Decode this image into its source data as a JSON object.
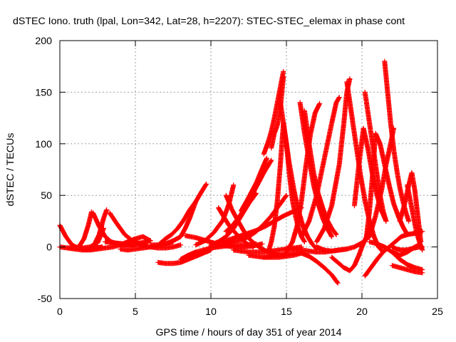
{
  "chart_data": {
    "type": "scatter",
    "title": "dSTEC Iono. truth (lpal, Lon=342, Lat=28, h=2207): STEC-STEC_elemax in phase cont",
    "xlabel": "GPS time / hours of day 351 of year 2014",
    "ylabel": "dSTEC  / TECUs",
    "xlim": [
      0,
      25
    ],
    "ylim": [
      -50,
      200
    ],
    "x_ticks": [
      0,
      5,
      10,
      15,
      20,
      25
    ],
    "y_ticks": [
      -50,
      0,
      50,
      100,
      150,
      200
    ],
    "x_tick_labels": [
      "0",
      "5",
      "10",
      "15",
      "20",
      "25"
    ],
    "y_tick_labels": [
      "-50",
      "0",
      "50",
      "100",
      "150",
      "200"
    ],
    "grid": true,
    "legend": "none",
    "marker": "plus",
    "color": "#ff0000",
    "series": [
      {
        "x": [
          0.0,
          0.4,
          0.8,
          1.2,
          1.6,
          2.0,
          2.4,
          2.8
        ],
        "values": [
          21,
          10,
          2,
          -1,
          -2,
          -2,
          -1,
          0
        ]
      },
      {
        "x": [
          0.0,
          0.5,
          1.0,
          1.5,
          2.0,
          2.5,
          2.9
        ],
        "values": [
          0,
          -1,
          -1,
          -1,
          0,
          4,
          18
        ]
      },
      {
        "x": [
          0.5,
          1.0,
          1.5,
          2.0,
          2.5,
          3.0,
          3.5,
          4.0,
          4.5
        ],
        "values": [
          -1,
          -2,
          -3,
          -3,
          -2,
          -1,
          0,
          2,
          5
        ]
      },
      {
        "x": [
          1.0,
          1.3,
          1.6,
          1.9,
          2.1
        ],
        "values": [
          -2,
          1,
          8,
          22,
          34
        ]
      },
      {
        "x": [
          2.2,
          2.6,
          3.0,
          3.4,
          3.8,
          4.2,
          4.6,
          5.0
        ],
        "values": [
          33,
          20,
          10,
          5,
          3,
          2,
          2,
          2
        ]
      },
      {
        "x": [
          2.2,
          2.6,
          2.9,
          3.1
        ],
        "values": [
          0,
          12,
          28,
          36
        ]
      },
      {
        "x": [
          3.3,
          3.8,
          4.3,
          4.8,
          5.3,
          5.8
        ],
        "values": [
          33,
          22,
          12,
          6,
          3,
          1
        ]
      },
      {
        "x": [
          3.0,
          3.6,
          4.2,
          4.8,
          5.4,
          6.0
        ],
        "values": [
          5,
          4,
          3,
          3,
          4,
          6
        ]
      },
      {
        "x": [
          4.0,
          4.5,
          5.0,
          5.5,
          6.0,
          6.5,
          7.0,
          7.5
        ],
        "values": [
          -2,
          -3,
          -2,
          -1,
          0,
          1,
          3,
          5
        ]
      },
      {
        "x": [
          4.5,
          5.0,
          5.5,
          6.0
        ],
        "values": [
          5,
          8,
          10,
          6
        ]
      },
      {
        "x": [
          5.0,
          5.5,
          6.0,
          6.5,
          7.0,
          7.5,
          8.0
        ],
        "values": [
          3,
          1,
          0,
          -1,
          -1,
          0,
          2
        ]
      },
      {
        "x": [
          6.0,
          6.5,
          7.0,
          7.5,
          8.0,
          8.3,
          8.6,
          9.0
        ],
        "values": [
          2,
          2,
          3,
          6,
          10,
          18,
          28,
          44
        ]
      },
      {
        "x": [
          6.6,
          7.0,
          7.4,
          7.8,
          8.2,
          8.6,
          9.0,
          9.4,
          9.7
        ],
        "values": [
          3,
          8,
          12,
          18,
          26,
          36,
          44,
          54,
          61
        ]
      },
      {
        "x": [
          6.5,
          7.0,
          7.5,
          8.0,
          8.5,
          9.0,
          9.5,
          10.0
        ],
        "values": [
          -15,
          -16,
          -16,
          -15,
          -12,
          -9,
          -6,
          -3
        ]
      },
      {
        "x": [
          8.0,
          8.5,
          9.0,
          9.5,
          10.0,
          10.5,
          11.0,
          11.5,
          12.0,
          12.5,
          13.0
        ],
        "values": [
          -12,
          -8,
          -5,
          -3,
          -1,
          0,
          1,
          2,
          2,
          2,
          3
        ]
      },
      {
        "x": [
          8.3,
          9.0,
          9.7,
          10.4,
          11.0,
          11.6,
          12.2,
          12.8,
          13.4
        ],
        "values": [
          11,
          9,
          6,
          3,
          1,
          0,
          0,
          1,
          3
        ]
      },
      {
        "x": [
          9.0,
          9.6,
          10.2,
          10.8,
          11.2,
          11.5
        ],
        "values": [
          2,
          6,
          14,
          26,
          42,
          60
        ]
      },
      {
        "x": [
          10.0,
          10.5,
          11.0,
          11.5,
          12.0,
          12.5,
          13.0,
          13.5,
          14.0,
          14.5,
          15.0
        ],
        "values": [
          0,
          1,
          3,
          5,
          7,
          10,
          15,
          22,
          30,
          40,
          50
        ]
      },
      {
        "x": [
          11.0,
          11.4,
          11.8,
          12.2,
          12.6,
          13.0,
          13.4,
          13.8,
          14.2,
          14.6,
          15.0
        ],
        "values": [
          50,
          36,
          25,
          15,
          7,
          2,
          -2,
          -5,
          -7,
          -8,
          -8
        ]
      },
      {
        "x": [
          10.5,
          10.9,
          11.2,
          11.6,
          12.0,
          12.4,
          12.8
        ],
        "values": [
          38,
          28,
          21,
          14,
          8,
          3,
          0
        ]
      },
      {
        "x": [
          10.0,
          10.5,
          11.0,
          11.5,
          12.0,
          12.5,
          13.0
        ],
        "values": [
          2,
          5,
          10,
          18,
          30,
          42,
          52
        ]
      },
      {
        "x": [
          10.0,
          10.6,
          11.2,
          11.8,
          12.4,
          13.0,
          13.6,
          14.2,
          14.8,
          15.4,
          16.0
        ],
        "values": [
          1,
          4,
          7,
          10,
          13,
          16,
          20,
          25,
          30,
          34,
          38
        ]
      },
      {
        "x": [
          11.5,
          12.0,
          12.5,
          13.0,
          13.5,
          14.0,
          14.5,
          15.0,
          15.5,
          16.0
        ],
        "values": [
          -3,
          -4,
          -5,
          -5,
          -5,
          -4,
          -3,
          -2,
          -1,
          0
        ]
      },
      {
        "x": [
          11.0,
          11.5,
          12.0,
          12.5,
          13.0,
          13.5,
          14.0
        ],
        "values": [
          15,
          22,
          32,
          45,
          58,
          72,
          84
        ]
      },
      {
        "x": [
          12.0,
          12.5,
          13.0,
          13.4,
          13.7
        ],
        "values": [
          35,
          48,
          62,
          76,
          86
        ]
      },
      {
        "x": [
          13.5,
          13.8,
          14.0,
          14.2,
          14.4,
          14.6,
          14.8
        ],
        "values": [
          90,
          102,
          112,
          125,
          140,
          155,
          170
        ]
      },
      {
        "x": [
          14.0,
          14.2,
          14.4,
          14.6,
          14.8
        ],
        "values": [
          96,
          110,
          118,
          135,
          165
        ]
      },
      {
        "x": [
          14.6,
          14.9,
          15.2,
          15.5,
          15.8,
          16.1,
          16.4,
          16.7,
          17.0
        ],
        "values": [
          140,
          110,
          80,
          55,
          35,
          20,
          10,
          3,
          -2
        ]
      },
      {
        "x": [
          15.0,
          15.5,
          16.0,
          16.5,
          17.0,
          17.5,
          18.0,
          18.5,
          19.0
        ],
        "values": [
          -1,
          -2,
          -3,
          -4,
          -5,
          -5,
          -4,
          -3,
          -2
        ]
      },
      {
        "x": [
          13.8,
          14.0,
          14.2,
          14.4,
          14.6,
          14.8,
          15.0,
          15.2,
          15.4,
          15.6,
          15.8,
          16.0,
          16.2
        ],
        "values": [
          -5,
          5,
          20,
          45,
          80,
          120,
          100,
          70,
          45,
          30,
          18,
          10,
          5
        ]
      },
      {
        "x": [
          12.5,
          13.0,
          13.5,
          14.0,
          14.5,
          15.0,
          15.5,
          16.0
        ],
        "values": [
          -8,
          -9,
          -10,
          -10,
          -10,
          -9,
          -8,
          -6
        ]
      },
      {
        "x": [
          13.5,
          14.0,
          14.5,
          15.0,
          15.5,
          16.0,
          16.5,
          17.0,
          17.5,
          18.0,
          18.4
        ],
        "values": [
          -10,
          -9,
          -8,
          -7,
          -6,
          -6,
          -9,
          -14,
          -20,
          -27,
          -35
        ]
      },
      {
        "x": [
          15.0,
          15.4,
          15.7,
          16.0,
          16.3,
          16.6,
          16.9,
          17.2
        ],
        "values": [
          -5,
          5,
          20,
          45,
          80,
          110,
          130,
          139
        ]
      },
      {
        "x": [
          15.9,
          16.2,
          16.5,
          16.8,
          17.1,
          17.4,
          17.7,
          18.0
        ],
        "values": [
          140,
          110,
          85,
          60,
          42,
          28,
          18,
          10
        ]
      },
      {
        "x": [
          16.2,
          16.5,
          16.8,
          17.1,
          17.4,
          17.7,
          18.0,
          18.3
        ],
        "values": [
          132,
          100,
          72,
          52,
          38,
          26,
          18,
          12
        ]
      },
      {
        "x": [
          16.0,
          16.5,
          17.0,
          17.5,
          18.0,
          18.3,
          18.5
        ],
        "values": [
          10,
          25,
          50,
          85,
          120,
          140,
          145
        ]
      },
      {
        "x": [
          17.0,
          17.5,
          18.0,
          18.5,
          18.8,
          19.0,
          19.2
        ],
        "values": [
          5,
          18,
          40,
          80,
          120,
          150,
          163
        ]
      },
      {
        "x": [
          17.0,
          17.5,
          18.0,
          18.5,
          19.0,
          19.5,
          20.0,
          20.5
        ],
        "values": [
          0,
          -3,
          -4,
          -3,
          -2,
          0,
          4,
          10
        ]
      },
      {
        "x": [
          19.0,
          19.3,
          19.6,
          19.9,
          20.2,
          20.5,
          20.8,
          21.1,
          21.4
        ],
        "values": [
          160,
          130,
          100,
          70,
          45,
          25,
          10,
          0,
          -5
        ]
      },
      {
        "x": [
          18.0,
          18.4,
          18.8,
          19.2,
          19.5,
          19.8,
          20.0,
          20.3,
          20.6
        ],
        "values": [
          -10,
          -15,
          -20,
          -23,
          -18,
          -8,
          0,
          10,
          22
        ]
      },
      {
        "x": [
          19.5,
          19.8,
          20.1,
          20.4,
          20.7,
          21.0,
          21.3,
          21.6
        ],
        "values": [
          40,
          80,
          115,
          95,
          70,
          50,
          35,
          25
        ]
      },
      {
        "x": [
          20.2,
          20.4,
          20.6,
          20.8,
          21.0,
          21.2,
          21.4,
          21.6
        ],
        "values": [
          150,
          130,
          110,
          90,
          70,
          50,
          35,
          25
        ]
      },
      {
        "x": [
          20.3,
          20.5,
          20.7,
          20.9,
          21.2,
          21.5,
          21.8,
          22.1,
          22.4,
          22.7,
          23.0
        ],
        "values": [
          10,
          35,
          70,
          110,
          100,
          80,
          60,
          42,
          30,
          20,
          12
        ]
      },
      {
        "x": [
          21.5,
          21.7,
          21.9,
          22.1,
          22.3,
          22.5,
          22.7,
          22.9,
          23.1
        ],
        "values": [
          180,
          150,
          120,
          95,
          75,
          58,
          45,
          34,
          25
        ]
      },
      {
        "x": [
          20.5,
          20.9,
          21.3,
          21.6,
          21.9,
          22.1
        ],
        "values": [
          10,
          30,
          55,
          80,
          100,
          115
        ]
      },
      {
        "x": [
          20.2,
          20.6,
          21.0,
          21.4,
          21.8,
          22.2,
          22.6,
          23.0,
          23.4,
          23.8,
          24.0
        ],
        "values": [
          -28,
          -20,
          -12,
          -5,
          0,
          5,
          10,
          12,
          13,
          14,
          15
        ]
      },
      {
        "x": [
          20.5,
          21.0,
          21.5,
          22.0,
          22.5,
          23.0,
          23.5,
          24.0
        ],
        "values": [
          5,
          3,
          0,
          -5,
          -12,
          -17,
          -20,
          -22
        ]
      },
      {
        "x": [
          22.0,
          22.5,
          23.0,
          23.5,
          24.0
        ],
        "values": [
          -18,
          -20,
          -22,
          -24,
          -25
        ]
      },
      {
        "x": [
          22.5,
          22.8,
          23.1,
          23.3,
          23.5,
          23.7,
          23.9
        ],
        "values": [
          25,
          40,
          60,
          72,
          55,
          30,
          5
        ]
      },
      {
        "x": [
          23.0,
          23.2,
          23.4,
          23.6,
          23.8,
          24.0
        ],
        "values": [
          60,
          45,
          30,
          15,
          5,
          -3
        ]
      },
      {
        "x": [
          22.0,
          22.5,
          23.0,
          23.5,
          23.8,
          24.0
        ],
        "values": [
          -5,
          -8,
          -5,
          0,
          2,
          0
        ]
      },
      {
        "x": [
          22.0,
          22.3,
          22.6,
          22.9,
          23.2,
          23.5,
          23.8
        ],
        "values": [
          0,
          -2,
          -3,
          -3,
          -2,
          -1,
          0
        ]
      }
    ]
  }
}
